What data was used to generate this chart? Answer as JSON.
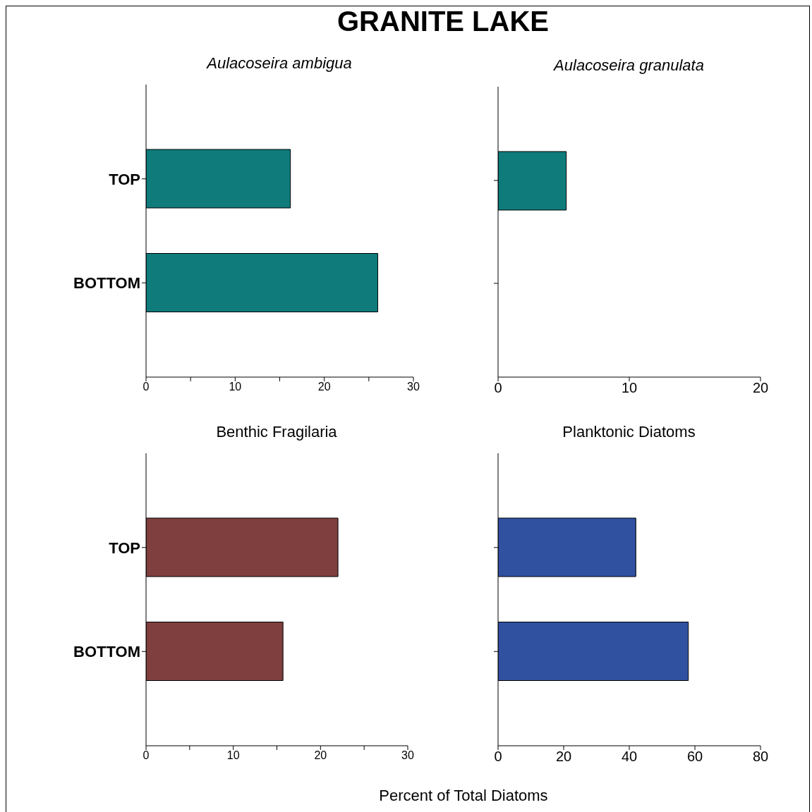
{
  "chart_data": [
    {
      "type": "bar",
      "orientation": "horizontal",
      "title": "Aulacoseira ambigua",
      "annotations": [
        "GRANITE LAKE"
      ],
      "categories": [
        "TOP",
        "BOTTOM"
      ],
      "values": [
        16.2,
        26
      ],
      "color": "#0f7b7b",
      "xlim": [
        0,
        30
      ],
      "xticks": [
        0,
        {
          "value": 5,
          "label": null
        },
        10,
        {
          "value": 15,
          "label": null
        },
        20,
        {
          "value": 25,
          "label": null
        },
        30
      ]
    },
    {
      "type": "bar",
      "orientation": "horizontal",
      "title": "Aulacoseira granulata",
      "categories": [
        null,
        null
      ],
      "values": [
        5.2,
        0
      ],
      "color": "#0f7b7b",
      "xlim": [
        0,
        20
      ],
      "xticks": [
        0,
        10,
        20
      ],
      "tick_labels": "x"
    },
    {
      "type": "bar",
      "orientation": "horizontal",
      "title": "Benthic Fragilaria",
      "xlabel": "Percent of Total Diatoms",
      "categories": [
        "TOP",
        "BOTTOM"
      ],
      "values": [
        22,
        15.7
      ],
      "color": "#7f3f3f",
      "xlim": [
        0,
        30
      ],
      "xticks": [
        0,
        {
          "value": 5,
          "label": null
        },
        10,
        {
          "value": 15,
          "label": null
        },
        20,
        {
          "value": 25,
          "label": null
        },
        30
      ]
    },
    {
      "type": "bar",
      "orientation": "horizontal",
      "title": "Planktonic Diatoms",
      "categories": [
        null,
        null
      ],
      "values": [
        42,
        58
      ],
      "color": "#3050a0",
      "xlim": [
        0,
        80
      ],
      "xticks": [
        0,
        20,
        40,
        60,
        80
      ],
      "tick_labels": "x"
    }
  ]
}
